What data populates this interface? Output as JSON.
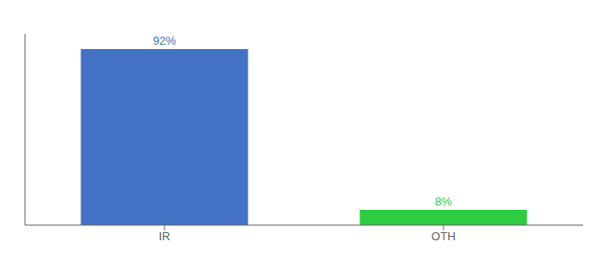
{
  "chart_data": {
    "type": "bar",
    "categories": [
      "IR",
      "OTH"
    ],
    "values": [
      92,
      8
    ],
    "value_labels": [
      "92%",
      "8%"
    ],
    "colors": [
      "#4472C4",
      "#2ECC40"
    ],
    "ylim": [
      0,
      100
    ],
    "data_labels": true,
    "tick_labels": "x"
  }
}
